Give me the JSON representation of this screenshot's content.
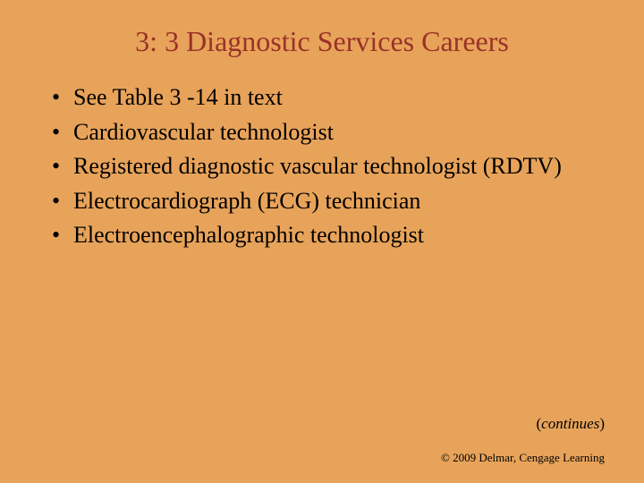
{
  "slide": {
    "title": "3: 3 Diagnostic Services Careers",
    "bullets": [
      "See Table 3 -14 in text",
      "Cardiovascular technologist",
      "Registered diagnostic vascular technologist (RDTV)",
      "Electrocardiograph (ECG) technician",
      "Electroencephalographic technologist"
    ],
    "continues_open": "(",
    "continues_word": "continues",
    "continues_close": ")",
    "copyright": "© 2009 Delmar, Cengage Learning"
  },
  "style": {
    "background_color": "#e8a35a",
    "title_color": "#9a3228",
    "text_color": "#000000",
    "title_fontsize": 32,
    "body_fontsize": 26,
    "continues_fontsize": 17,
    "copyright_fontsize": 13,
    "font_family": "Times New Roman"
  }
}
